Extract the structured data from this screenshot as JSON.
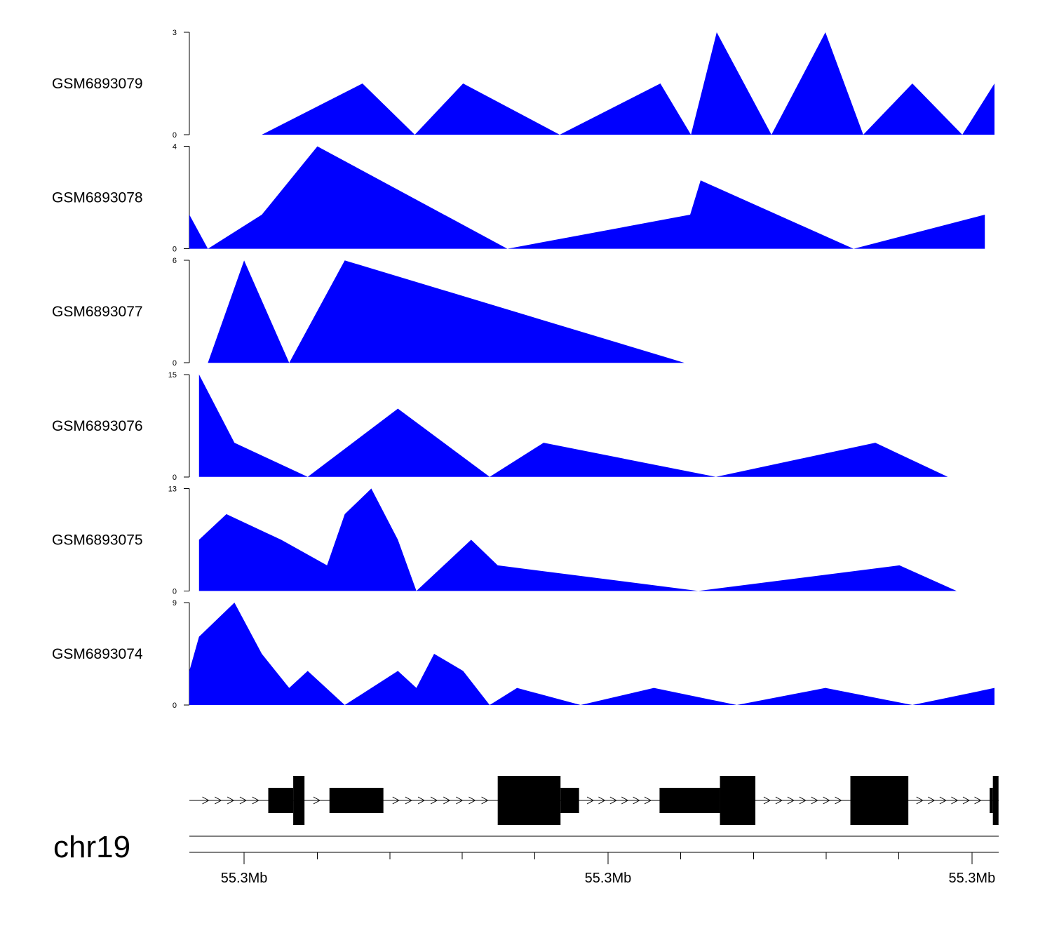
{
  "chart_data": {
    "type": "area",
    "chromosome": "chr19",
    "fill_color": "#0000ff",
    "gene_color": "#000000",
    "x_range": [
      0,
      100
    ],
    "tracks": [
      {
        "name": "GSM6893079",
        "ymax": 3,
        "ymin": 0,
        "points": [
          [
            9,
            0
          ],
          [
            21.5,
            1.5
          ],
          [
            28,
            0
          ],
          [
            34,
            1.5
          ],
          [
            46,
            0
          ],
          [
            58.5,
            1.5
          ],
          [
            62.3,
            0
          ],
          [
            65.5,
            3
          ],
          [
            72.3,
            0
          ],
          [
            79,
            3
          ],
          [
            83.7,
            0
          ],
          [
            89.8,
            1.5
          ],
          [
            96,
            0
          ],
          [
            100,
            1.5
          ]
        ]
      },
      {
        "name": "GSM6893078",
        "ymax": 4,
        "ymin": 0,
        "points": [
          [
            0,
            1.33
          ],
          [
            2.3,
            0
          ],
          [
            9,
            1.33
          ],
          [
            15.9,
            4
          ],
          [
            39.5,
            0
          ],
          [
            62.2,
            1.33
          ],
          [
            63.5,
            2.67
          ],
          [
            82.5,
            0
          ],
          [
            98.8,
            1.33
          ]
        ]
      },
      {
        "name": "GSM6893077",
        "ymax": 6,
        "ymin": 0,
        "points": [
          [
            2.3,
            0
          ],
          [
            6.8,
            6
          ],
          [
            12.4,
            0
          ],
          [
            19.3,
            6
          ],
          [
            61.5,
            0
          ]
        ]
      },
      {
        "name": "GSM6893076",
        "ymax": 15,
        "ymin": 0,
        "points": [
          [
            1.2,
            15
          ],
          [
            5.6,
            5
          ],
          [
            14.7,
            0
          ],
          [
            25.9,
            10
          ],
          [
            37.3,
            0
          ],
          [
            44,
            5
          ],
          [
            65.4,
            0
          ],
          [
            85.2,
            5
          ],
          [
            94.2,
            0
          ]
        ]
      },
      {
        "name": "GSM6893075",
        "ymax": 13,
        "ymin": 0,
        "points": [
          [
            1.2,
            6.5
          ],
          [
            4.6,
            9.75
          ],
          [
            11.4,
            6.5
          ],
          [
            17.1,
            3.25
          ],
          [
            19.3,
            9.75
          ],
          [
            22.6,
            13
          ],
          [
            25.9,
            6.5
          ],
          [
            28.2,
            0
          ],
          [
            35,
            6.5
          ],
          [
            38.3,
            3.25
          ],
          [
            63.2,
            0
          ],
          [
            88.2,
            3.25
          ],
          [
            95.3,
            0
          ]
        ]
      },
      {
        "name": "GSM6893074",
        "ymax": 9,
        "ymin": 0,
        "points": [
          [
            0,
            3
          ],
          [
            1.2,
            6
          ],
          [
            5.6,
            9
          ],
          [
            9,
            4.5
          ],
          [
            12.4,
            1.5
          ],
          [
            14.7,
            3
          ],
          [
            19.3,
            0
          ],
          [
            25.9,
            3
          ],
          [
            28.2,
            1.5
          ],
          [
            30.4,
            4.5
          ],
          [
            34,
            3
          ],
          [
            37.3,
            0
          ],
          [
            40.7,
            1.5
          ],
          [
            48.6,
            0
          ],
          [
            57.7,
            1.5
          ],
          [
            68,
            0
          ],
          [
            79,
            1.5
          ],
          [
            89.8,
            0
          ],
          [
            100,
            1.5
          ]
        ]
      }
    ],
    "gene_model": {
      "exons": [
        {
          "start": 9.8,
          "end": 12.9,
          "type": "utr"
        },
        {
          "start": 12.9,
          "end": 14.3,
          "type": "cds"
        },
        {
          "start": 17.4,
          "end": 24.1,
          "type": "utr"
        },
        {
          "start": 38.3,
          "end": 46.1,
          "type": "cds"
        },
        {
          "start": 46.1,
          "end": 48.4,
          "type": "utr"
        },
        {
          "start": 58.4,
          "end": 65.9,
          "type": "utr"
        },
        {
          "start": 65.9,
          "end": 70.3,
          "type": "cds"
        },
        {
          "start": 82.1,
          "end": 89.3,
          "type": "cds"
        },
        {
          "start": 99.4,
          "end": 99.8,
          "type": "utr"
        },
        {
          "start": 99.8,
          "end": 100.5,
          "type": "cds"
        }
      ],
      "arrows_between": [
        [
          0.5,
          9.8
        ],
        [
          14.3,
          17.4
        ],
        [
          24.1,
          38.3
        ],
        [
          48.4,
          58.4
        ],
        [
          70.3,
          82.1
        ],
        [
          89.3,
          99.4
        ]
      ]
    },
    "x_axis": {
      "minor_ticks": [
        6.8,
        15.9,
        24.9,
        33.9,
        42.9,
        52,
        61,
        70.1,
        79.1,
        88.1,
        97.2
      ],
      "labeled_ticks": [
        {
          "pos": 6.8,
          "label": "55.3Mb"
        },
        {
          "pos": 52,
          "label": "55.3Mb"
        },
        {
          "pos": 97.2,
          "label": "55.3Mb"
        }
      ]
    }
  }
}
